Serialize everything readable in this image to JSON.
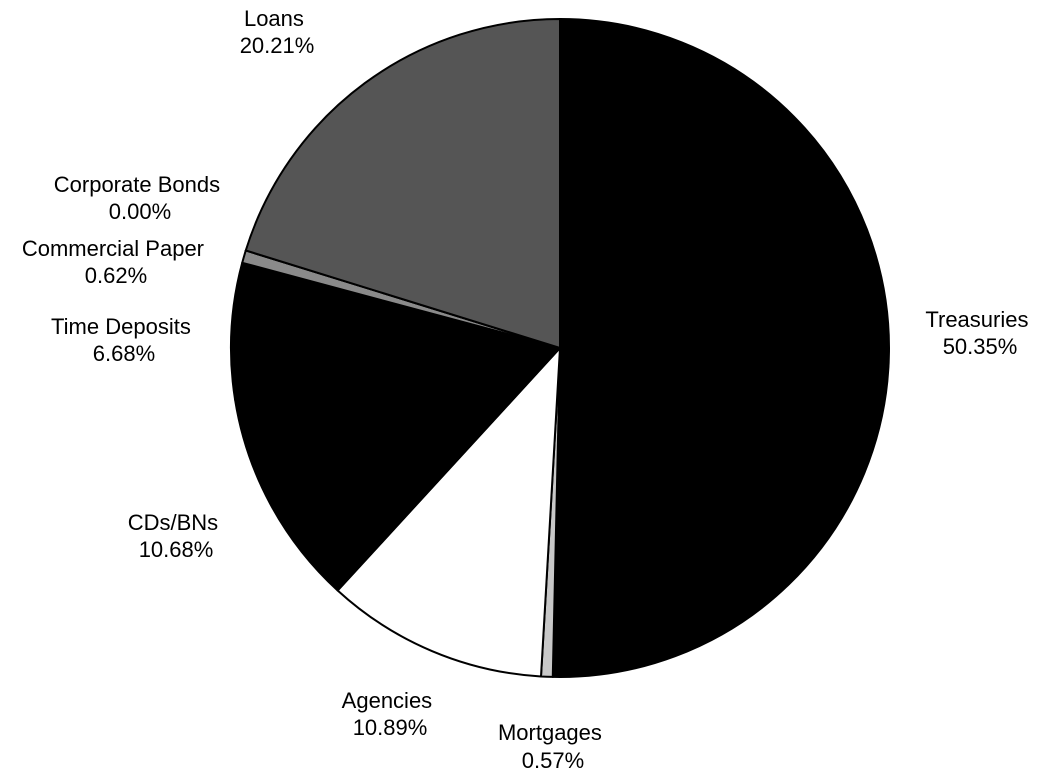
{
  "chart_data": {
    "type": "pie",
    "start": "12 o'clock",
    "direction": "clockwise",
    "slices": [
      {
        "label": "Treasuries",
        "value_text": "50.35%",
        "value": 50.35,
        "color": "#000000"
      },
      {
        "label": "Mortgages",
        "value_text": "0.57%",
        "value": 0.57,
        "color": "#c8c8c8"
      },
      {
        "label": "Agencies",
        "value_text": "10.89%",
        "value": 10.89,
        "color": "#ffffff"
      },
      {
        "label": "CDs/BNs",
        "value_text": "10.68%",
        "value": 10.68,
        "color": "#000000"
      },
      {
        "label": "Time Deposits",
        "value_text": "6.68%",
        "value": 6.68,
        "color": "#000000"
      },
      {
        "label": "Commercial Paper",
        "value_text": "0.62%",
        "value": 0.62,
        "color": "#8a8a8a"
      },
      {
        "label": "Corporate Bonds",
        "value_text": "0.00%",
        "value": 0.0,
        "color": "#6e6e6e"
      },
      {
        "label": "Loans",
        "value_text": "20.21%",
        "value": 20.21,
        "color": "#555555"
      }
    ]
  }
}
